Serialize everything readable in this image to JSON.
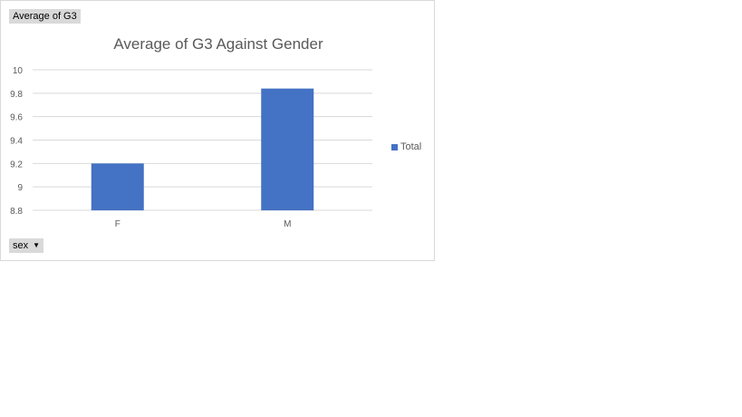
{
  "pivot": {
    "value_field_label": "Average of G3",
    "axis_field_label": "sex"
  },
  "colors": {
    "bar": "#4472c4",
    "grid": "#d9d9d9",
    "text": "#595959"
  },
  "chart_data": {
    "type": "bar",
    "title": "Average of G3 Against Gender",
    "categories": [
      "F",
      "M"
    ],
    "series": [
      {
        "name": "Total",
        "values": [
          9.2,
          9.84
        ]
      }
    ],
    "ylim": [
      8.8,
      10
    ],
    "yticks": [
      8.8,
      9,
      9.2,
      9.4,
      9.6,
      9.8,
      10
    ],
    "ytick_labels": [
      "8.8",
      "9",
      "9.2",
      "9.4",
      "9.6",
      "9.8",
      "10"
    ],
    "grid": true,
    "legend_position": "right"
  }
}
